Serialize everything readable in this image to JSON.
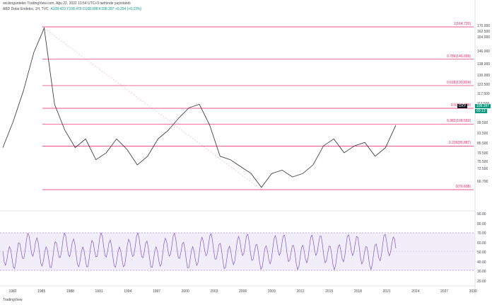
{
  "header": {
    "published": "seckinguntekin TradingView.com, Ağu 22, 2022 13:54 UTC+3 tarihinde yayınlandı",
    "symbol": "ABD Dolar Endeksi, 1H, TVC",
    "ohlc": "A108.433 Y108.479 D108.088 K108.397 +0.254 (+0.23%)"
  },
  "price_axis": [
    "170.000",
    "162.500",
    "154.000",
    "146.000",
    "138.000",
    "130.000",
    "122.500",
    "117.500",
    "111.500",
    "99.500",
    "91.500",
    "85.500",
    "79.500",
    "75.500",
    "72.500",
    "66.700"
  ],
  "rsi_axis": [
    "90.00",
    "80.00",
    "70.00",
    "60.00",
    "50.00",
    "40.00",
    "30.00",
    "20.00"
  ],
  "fib_levels": [
    {
      "label": "1(164.720)",
      "price": 164.72
    },
    {
      "label": "0.786(146.099)",
      "price": 146.099
    },
    {
      "label": "0.618(130.824)",
      "price": 130.824
    },
    {
      "label": "0.5(117.708)",
      "price": 117.708
    },
    {
      "label": "0.382(108.593)",
      "price": 108.593
    },
    {
      "label": "0.236(95.887)",
      "price": 95.887
    },
    {
      "label": "0(70.698)",
      "price": 70.698
    }
  ],
  "last_price": {
    "label": "DXY",
    "value": "108.397",
    "time": "60:13"
  },
  "years": [
    "1982",
    "1985",
    "1988",
    "1991",
    "1994",
    "1997",
    "2000",
    "2003",
    "2006",
    "2009",
    "2012",
    "2015",
    "2018",
    "2021",
    "2024",
    "2027",
    "2030"
  ],
  "footer": "TradingView",
  "chart_data": {
    "type": "line",
    "series": [
      {
        "values": [
          95,
          110,
          128,
          150,
          164,
          120,
          105,
          95,
          100,
          88,
          92,
          100,
          94,
          85,
          90,
          100,
          105,
          112,
          118,
          120,
          108,
          90,
          88,
          84,
          80,
          72,
          80,
          82,
          78,
          80,
          85,
          96,
          100,
          92,
          96,
          98,
          90,
          95,
          108
        ]
      }
    ]
  }
}
